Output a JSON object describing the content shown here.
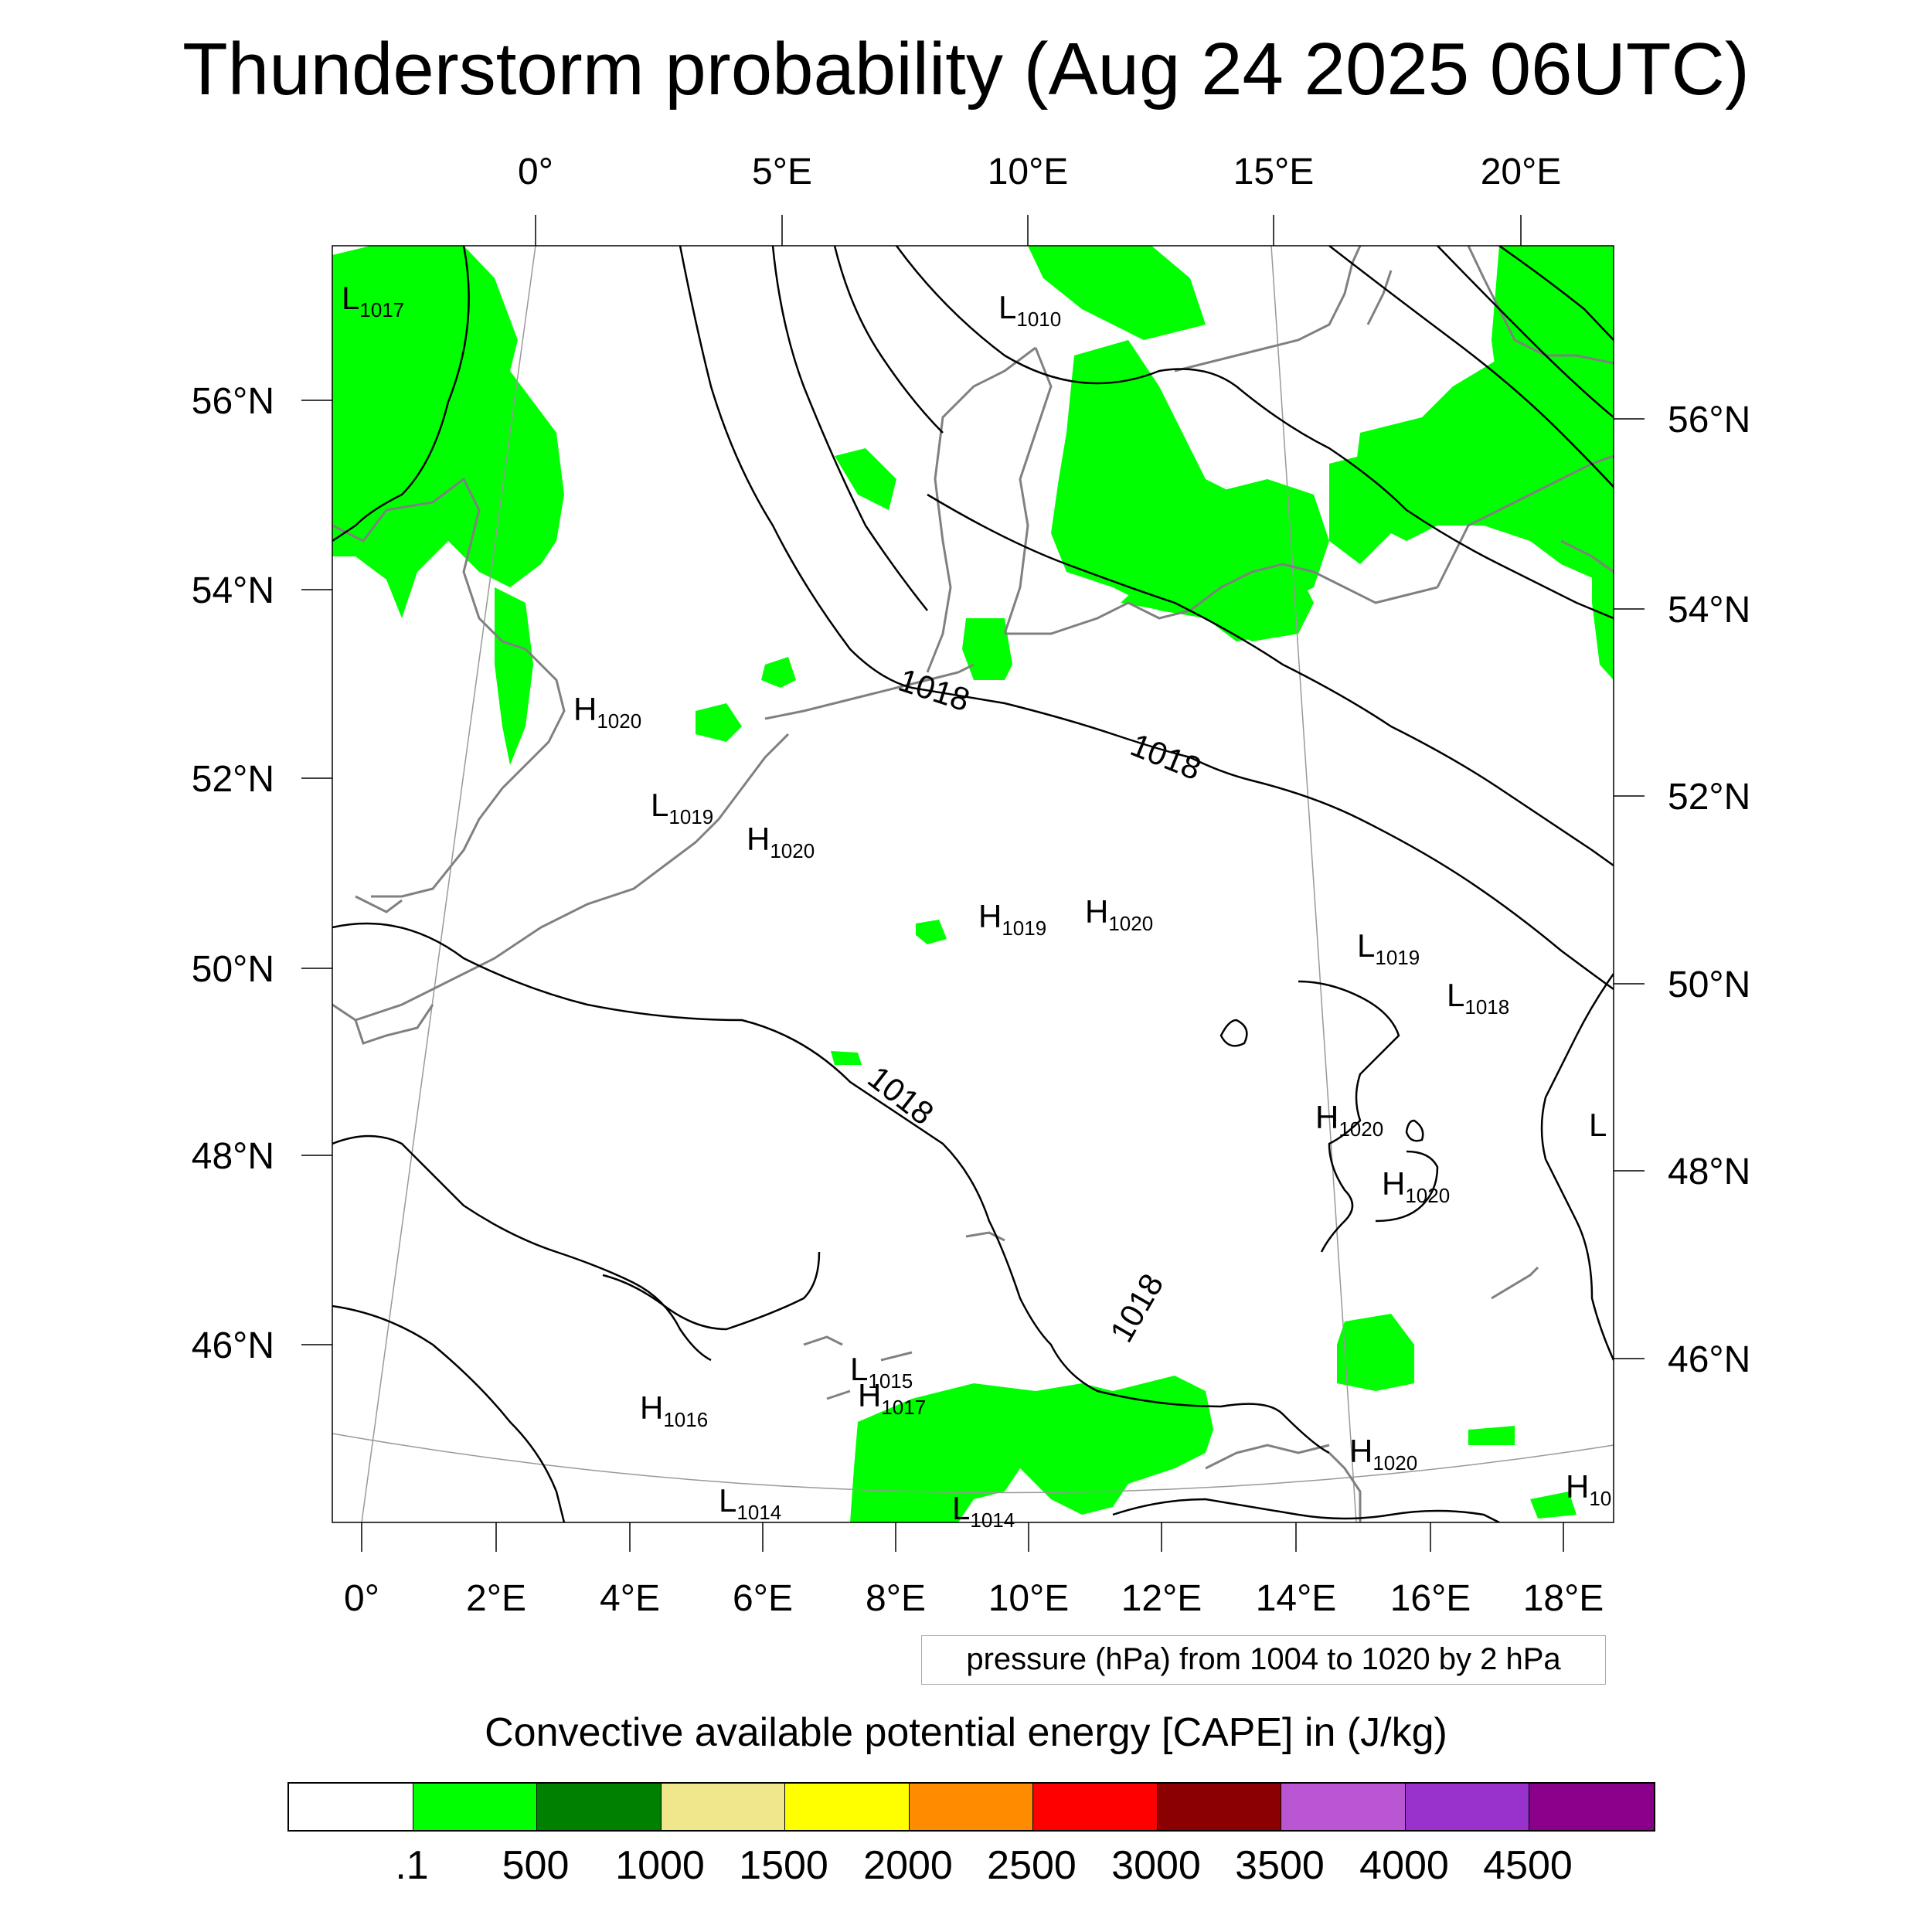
{
  "title": "Thunderstorm probability (Aug 24 2025 06UTC)",
  "top_lon_labels": [
    "0°",
    "5°E",
    "10°E",
    "15°E",
    "20°E"
  ],
  "bottom_lon_labels": [
    "0°",
    "2°E",
    "4°E",
    "6°E",
    "8°E",
    "10°E",
    "12°E",
    "14°E",
    "16°E",
    "18°E"
  ],
  "left_lat_labels": [
    "56°N",
    "54°N",
    "52°N",
    "50°N",
    "48°N",
    "46°N"
  ],
  "right_lat_labels": [
    "56°N",
    "54°N",
    "52°N",
    "50°N",
    "48°N",
    "46°N"
  ],
  "contour_info": "pressure (hPa) from 1004 to 1020 by 2 hPa",
  "contour_labels": [
    "1018",
    "1018",
    "1018",
    "1018"
  ],
  "pressure_centers": [
    {
      "type": "L",
      "value": "1017"
    },
    {
      "type": "L",
      "value": "1010"
    },
    {
      "type": "H",
      "value": "1020"
    },
    {
      "type": "L",
      "value": "1019"
    },
    {
      "type": "H",
      "value": "1020"
    },
    {
      "type": "H",
      "value": "1019"
    },
    {
      "type": "H",
      "value": "1020"
    },
    {
      "type": "L",
      "value": "1019"
    },
    {
      "type": "L",
      "value": "1018"
    },
    {
      "type": "H",
      "value": "1020"
    },
    {
      "type": "H",
      "value": "1020"
    },
    {
      "type": "L",
      "value": "1015"
    },
    {
      "type": "H",
      "value": "1017"
    },
    {
      "type": "H",
      "value": "1016"
    },
    {
      "type": "L",
      "value": "1014"
    },
    {
      "type": "L",
      "value": "1014"
    },
    {
      "type": "H",
      "value": "1020"
    },
    {
      "type": "H",
      "value": "10"
    },
    {
      "type": "L",
      "value": ""
    }
  ],
  "legend": {
    "title": "Convective available potential energy [CAPE] in (J/kg)",
    "colors": [
      "#ffffff",
      "#00ff00",
      "#008000",
      "#f0e68c",
      "#ffff00",
      "#ff8c00",
      "#ff0000",
      "#8b0000",
      "#ba55d3",
      "#9932cc",
      "#8b008b"
    ],
    "labels": [
      ".1",
      "500",
      "1000",
      "1500",
      "2000",
      "2500",
      "3000",
      "3500",
      "4000",
      "4500"
    ]
  },
  "cape_color": "#00ff00"
}
